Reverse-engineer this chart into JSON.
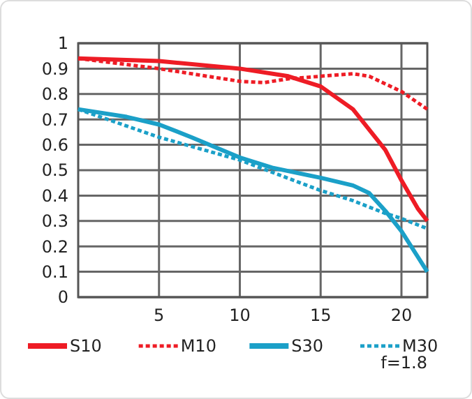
{
  "chart_data": {
    "type": "line",
    "xlim": [
      0,
      21.6
    ],
    "xticks": [
      5,
      10,
      15,
      20
    ],
    "ylim": [
      0,
      1
    ],
    "yticks": [
      0,
      0.1,
      0.2,
      0.3,
      0.4,
      0.5,
      0.6,
      0.7,
      0.8,
      0.9,
      1
    ],
    "grid": true,
    "legend": "bottom",
    "annotations": [
      "f=1.8"
    ],
    "series": [
      {
        "name": "S10",
        "color": "#ee1c25",
        "line_style": "solid",
        "x": [
          0,
          5,
          10,
          13,
          15,
          17,
          19,
          20,
          21,
          21.6
        ],
        "values": [
          0.94,
          0.93,
          0.9,
          0.87,
          0.83,
          0.74,
          0.58,
          0.46,
          0.35,
          0.3
        ]
      },
      {
        "name": "M10",
        "color": "#ee1c25",
        "line_style": "dotted",
        "x": [
          0,
          5,
          10,
          11.5,
          13,
          15,
          17,
          18,
          20,
          21.6
        ],
        "values": [
          0.94,
          0.9,
          0.85,
          0.845,
          0.86,
          0.87,
          0.88,
          0.87,
          0.81,
          0.74
        ]
      },
      {
        "name": "S30",
        "color": "#1ba0c8",
        "line_style": "solid",
        "x": [
          0,
          3,
          5,
          7,
          10,
          12,
          15,
          17,
          18,
          19,
          20,
          21,
          21.6
        ],
        "values": [
          0.74,
          0.71,
          0.68,
          0.63,
          0.55,
          0.51,
          0.47,
          0.44,
          0.41,
          0.34,
          0.26,
          0.16,
          0.1
        ]
      },
      {
        "name": "M30",
        "color": "#1ba0c8",
        "line_style": "dotted",
        "x": [
          0,
          5,
          10,
          15,
          17,
          19,
          20,
          21.6
        ],
        "values": [
          0.74,
          0.63,
          0.54,
          0.42,
          0.38,
          0.33,
          0.31,
          0.27
        ]
      }
    ]
  }
}
